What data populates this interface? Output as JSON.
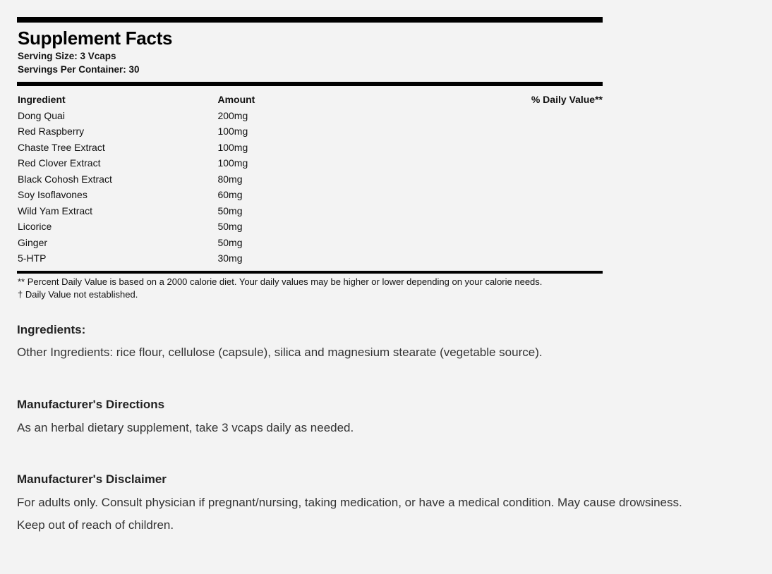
{
  "facts": {
    "title": "Supplement Facts",
    "serving_size": "Serving Size: 3 Vcaps",
    "servings_per_container": "Servings Per Container: 30",
    "columns": [
      "Ingredient",
      "Amount",
      "% Daily Value**"
    ],
    "rows": [
      {
        "ingredient": "Dong Quai",
        "amount": "200mg",
        "dv": ""
      },
      {
        "ingredient": "Red Raspberry",
        "amount": "100mg",
        "dv": ""
      },
      {
        "ingredient": "Chaste Tree Extract",
        "amount": "100mg",
        "dv": ""
      },
      {
        "ingredient": "Red Clover Extract",
        "amount": "100mg",
        "dv": ""
      },
      {
        "ingredient": "Black Cohosh Extract",
        "amount": "80mg",
        "dv": ""
      },
      {
        "ingredient": "Soy Isoflavones",
        "amount": "60mg",
        "dv": ""
      },
      {
        "ingredient": "Wild Yam Extract",
        "amount": "50mg",
        "dv": ""
      },
      {
        "ingredient": "Licorice",
        "amount": "50mg",
        "dv": ""
      },
      {
        "ingredient": "Ginger",
        "amount": "50mg",
        "dv": ""
      },
      {
        "ingredient": "5-HTP",
        "amount": "30mg",
        "dv": ""
      }
    ],
    "footnote1": "** Percent Daily Value is based on a 2000 calorie diet. Your daily values may be higher or lower depending on your calorie needs.",
    "footnote2": "† Daily Value not established."
  },
  "ingredients": {
    "heading": "Ingredients:",
    "text": "Other Ingredients: rice flour, cellulose (capsule), silica and magnesium stearate (vegetable source)."
  },
  "directions": {
    "heading": "Manufacturer's Directions",
    "text": "As an herbal dietary supplement, take 3 vcaps daily as needed."
  },
  "disclaimer": {
    "heading": "Manufacturer's Disclaimer",
    "line1": "For adults only. Consult physician if pregnant/nursing, taking medication, or have a medical condition. May cause drowsiness.",
    "line2": "Keep out of reach of children."
  }
}
